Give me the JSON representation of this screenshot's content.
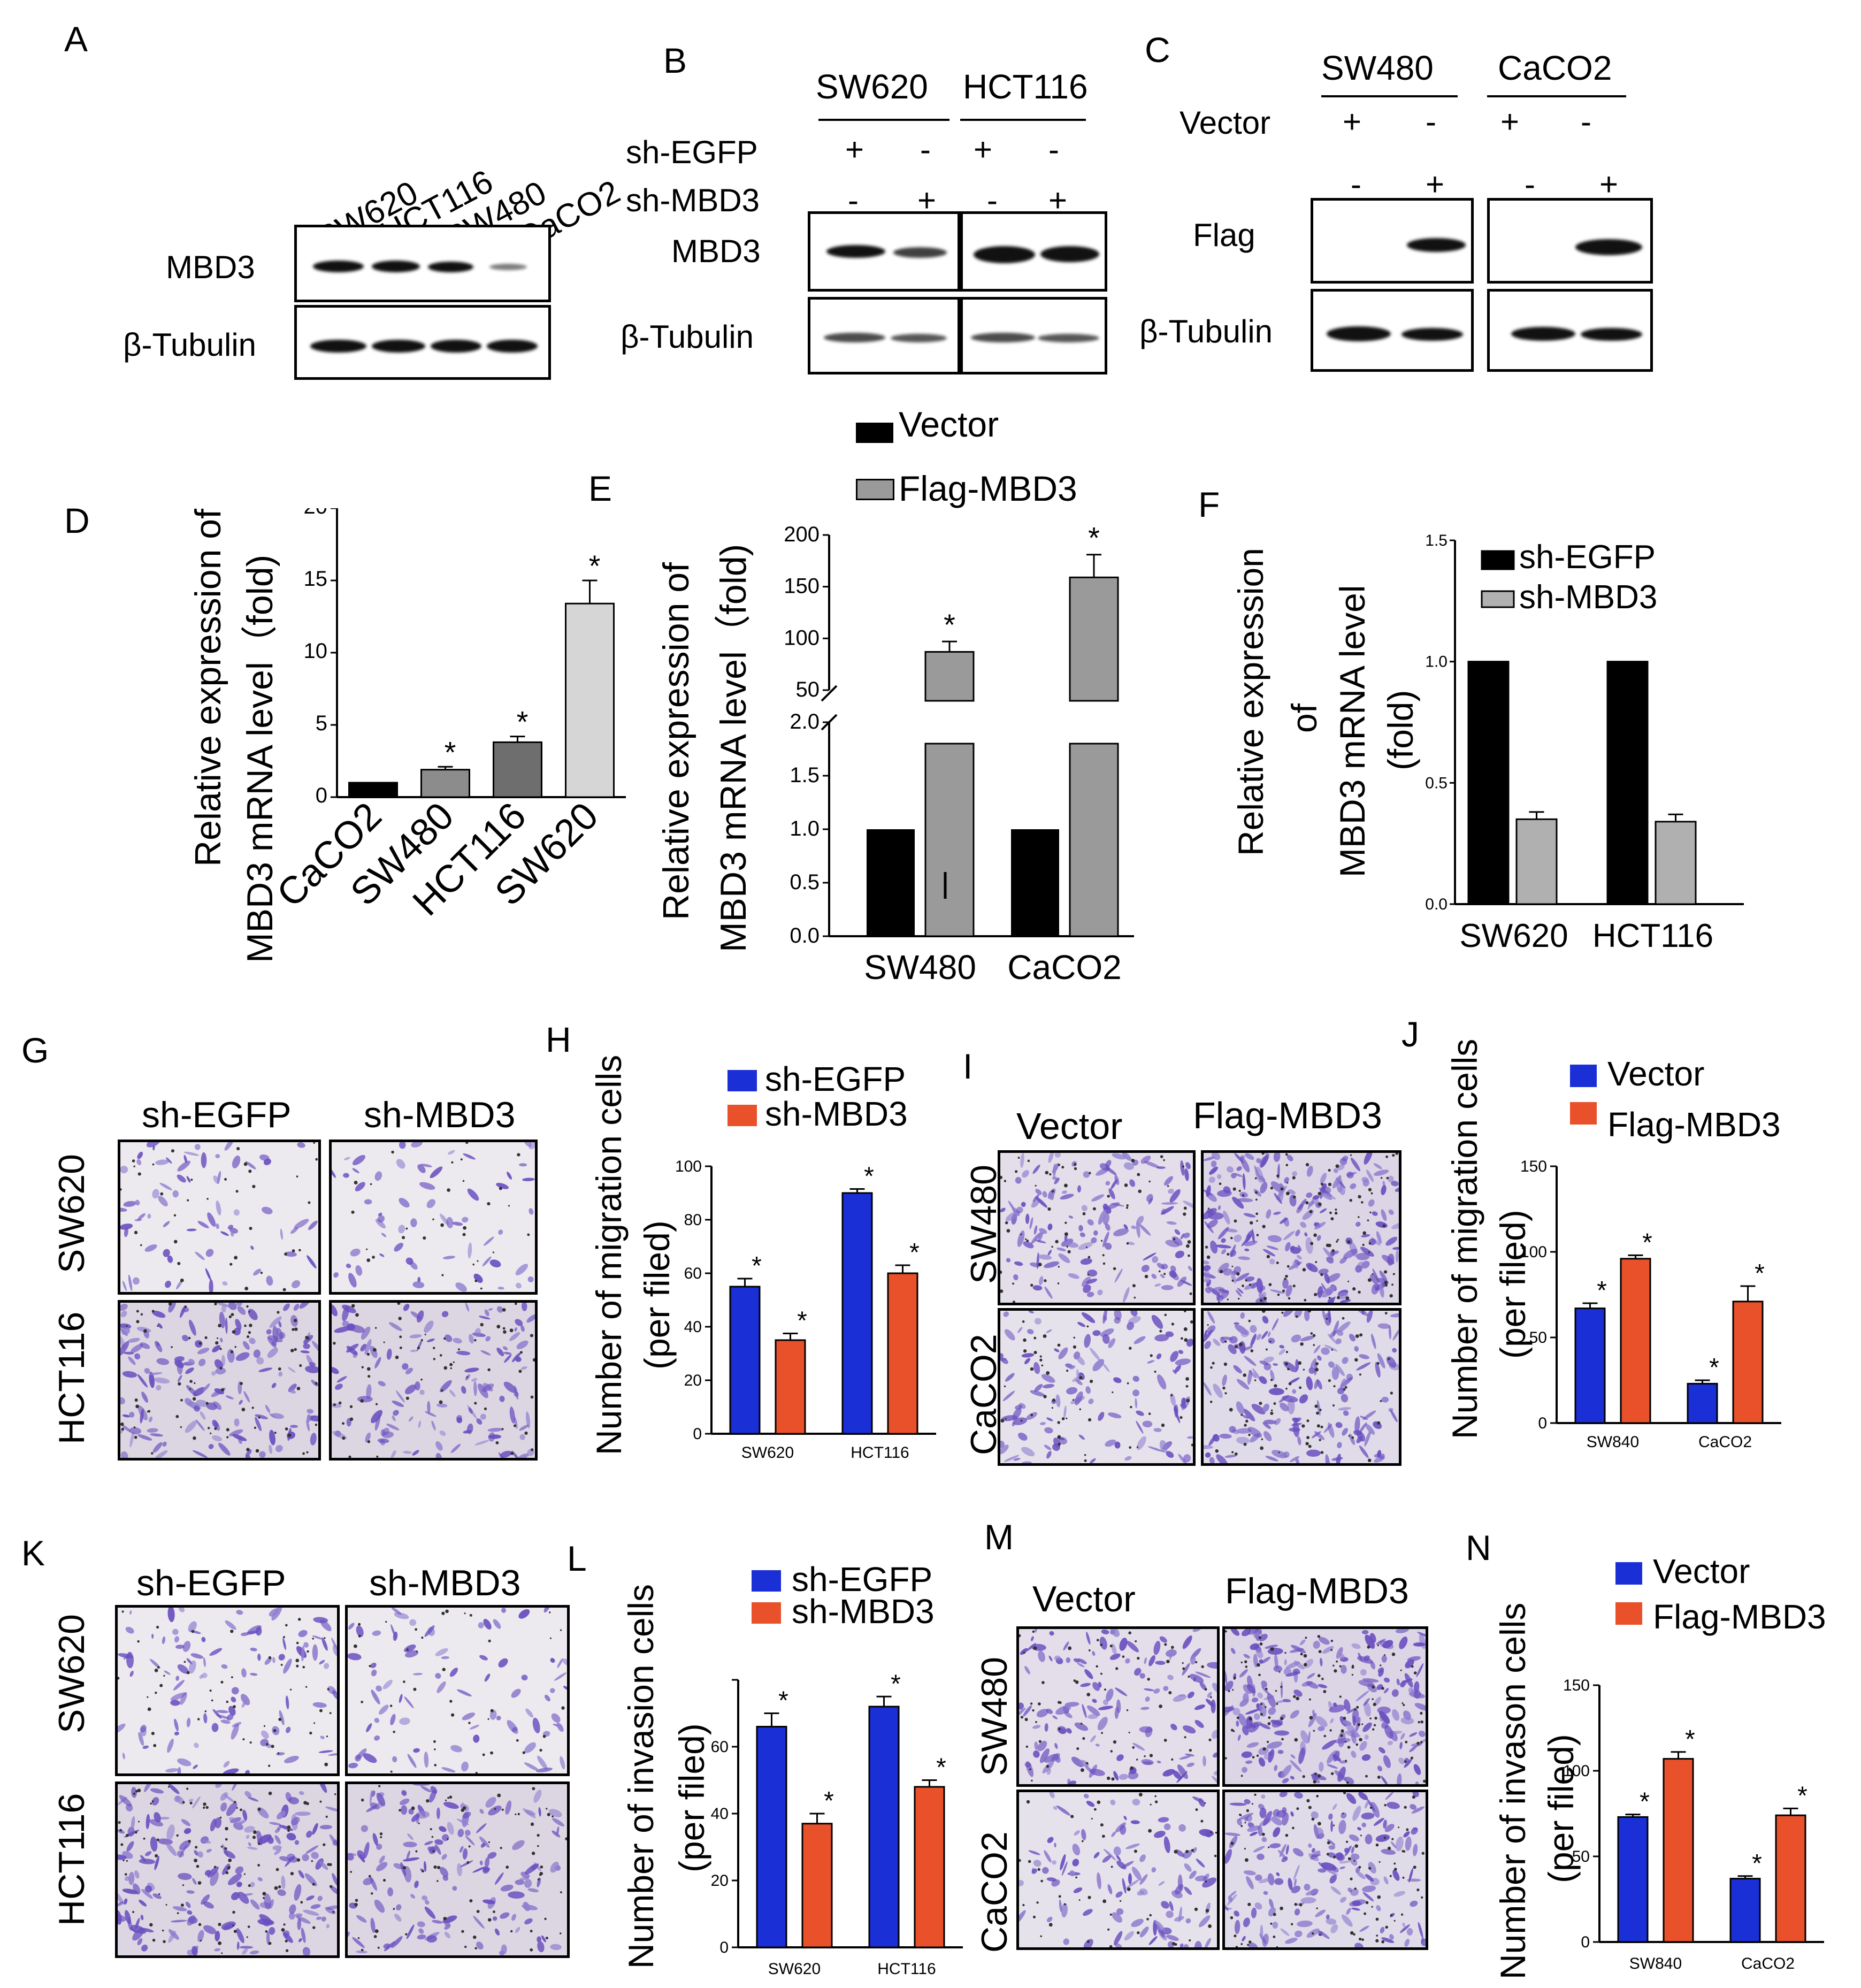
{
  "panels": {
    "A": {
      "label": "A",
      "cells": [
        "SW620",
        "HCT116",
        "SW480",
        "CaCO2"
      ],
      "rows": [
        "MBD3",
        "β-Tubulin"
      ]
    },
    "B": {
      "label": "B",
      "groups": [
        "SW620",
        "HCT116"
      ],
      "rows": [
        "sh-EGFP",
        "sh-MBD3"
      ],
      "egfp_signs": [
        "+",
        "-",
        "+",
        "-"
      ],
      "mbd3_signs": [
        "-",
        "+",
        "-",
        "+"
      ],
      "blots": [
        "MBD3",
        "β-Tubulin"
      ]
    },
    "C": {
      "label": "C",
      "groups": [
        "SW480",
        "CaCO2"
      ],
      "row": "Vector",
      "vector_signs": [
        "+",
        "-",
        "+",
        "-"
      ],
      "flag_signs": [
        "-",
        "+",
        "-",
        "+"
      ],
      "blots": [
        "Flag",
        "β-Tubulin"
      ]
    },
    "D": {
      "label": "D",
      "ylabel_line1": "Relative  expression of",
      "ylabel_line2": "MBD3 mRNA level（fold)"
    },
    "E": {
      "label": "E",
      "ylabel_line1": "Relative  expression of",
      "ylabel_line2": "MBD3 mRNA level（fold)",
      "legend": [
        "Vector",
        "Flag-MBD3"
      ]
    },
    "F": {
      "label": "F",
      "ylabel_line1": "Relative  expression",
      "ylabel_line2": "of",
      "ylabel_line3": "MBD3 mRNA level",
      "ylabel_line4": "(fold)",
      "legend": [
        "sh-EGFP",
        "sh-MBD3"
      ]
    },
    "G": {
      "label": "G",
      "cols": [
        "sh-EGFP",
        "sh-MBD3"
      ],
      "rows": [
        "SW620",
        "HCT116"
      ]
    },
    "H": {
      "label": "H",
      "ylabel_line1": "Number of migration  cells",
      "ylabel_line2": "(per filed)",
      "legend": [
        "sh-EGFP",
        "sh-MBD3"
      ]
    },
    "I": {
      "label": "I",
      "cols": [
        "Vector",
        "Flag-MBD3"
      ],
      "rows": [
        "SW480",
        "CaCO2"
      ]
    },
    "J": {
      "label": "J",
      "ylabel_line1": "Number of migration  cells",
      "ylabel_line2": "(per filed)",
      "legend": [
        "Vector",
        "Flag-MBD3"
      ]
    },
    "K": {
      "label": "K",
      "cols": [
        "sh-EGFP",
        "sh-MBD3"
      ],
      "rows": [
        "SW620",
        "HCT116"
      ]
    },
    "L": {
      "label": "L",
      "ylabel_line1": "Number of invasion cells",
      "ylabel_line2": "(per filed)",
      "legend": [
        "sh-EGFP",
        "sh-MBD3"
      ]
    },
    "M": {
      "label": "M",
      "cols": [
        "Vector",
        "Flag-MBD3"
      ],
      "rows": [
        "SW480",
        "CaCO2"
      ]
    },
    "N": {
      "label": "N",
      "ylabel_line1": "Number of invason cells",
      "ylabel_line2": "(per filed)",
      "legend": [
        "Vector",
        "Flag-MBD3"
      ]
    }
  },
  "colors": {
    "blue": "#1a2fd6",
    "red": "#e8512a",
    "black": "#000000",
    "grey": "#9a9a9a",
    "crystal_violet": "#6a4fc0"
  },
  "chart_data": [
    {
      "panel": "D",
      "type": "bar",
      "categories": [
        "CaCO2",
        "SW480",
        "HCT116",
        "SW620"
      ],
      "series": [
        {
          "values": [
            1.0,
            1.9,
            3.8,
            13.4
          ],
          "errors": [
            0,
            0.2,
            0.4,
            1.6
          ],
          "colors": [
            "#000000",
            "#8c8c8c",
            "#6e6e6e",
            "#d6d6d6"
          ],
          "sig": [
            "",
            "*",
            "*",
            "*"
          ]
        }
      ],
      "ylim": [
        0,
        20
      ],
      "yticks": [
        0,
        5,
        10,
        15,
        20
      ]
    },
    {
      "panel": "E",
      "type": "bar",
      "categories": [
        "SW480",
        "CaCO2"
      ],
      "series": [
        {
          "name": "Vector",
          "values": [
            1.0,
            1.0
          ],
          "errors": [
            0,
            0
          ],
          "color": "#000000",
          "sig": [
            "",
            ""
          ]
        },
        {
          "name": "Flag-MBD3",
          "values": [
            87,
            159
          ],
          "errors": [
            10,
            22
          ],
          "color": "#9a9a9a",
          "sig": [
            "*",
            "*"
          ]
        }
      ],
      "broken_axis": true,
      "lower_ticks": [
        "0.0",
        "0.5",
        "1.0",
        "1.5",
        "2.0"
      ],
      "upper_ticks": [
        "50",
        "100",
        "150",
        "200"
      ]
    },
    {
      "panel": "F",
      "type": "bar",
      "categories": [
        "SW620",
        "HCT116"
      ],
      "series": [
        {
          "name": "sh-EGFP",
          "values": [
            1.0,
            1.0
          ],
          "errors": [
            0,
            0
          ],
          "color": "#000000"
        },
        {
          "name": "sh-MBD3",
          "values": [
            0.35,
            0.34
          ],
          "errors": [
            0.03,
            0.03
          ],
          "color": "#b0b0b0"
        }
      ],
      "ylim": [
        0,
        1.5
      ],
      "yticks": [
        "0.0",
        "0.5",
        "1.0",
        "1.5"
      ]
    },
    {
      "panel": "H",
      "type": "bar",
      "categories": [
        "SW620",
        "HCT116"
      ],
      "series": [
        {
          "name": "sh-EGFP",
          "values": [
            55,
            90
          ],
          "errors": [
            3,
            1.5
          ],
          "color": "#1a2fd6",
          "sig": [
            "*",
            "*"
          ]
        },
        {
          "name": "sh-MBD3",
          "values": [
            35,
            60
          ],
          "errors": [
            2.5,
            3
          ],
          "color": "#e8512a",
          "sig": [
            "*",
            "*"
          ]
        }
      ],
      "ylim": [
        0,
        100
      ],
      "yticks": [
        "0",
        "20",
        "40",
        "60",
        "80",
        "100"
      ]
    },
    {
      "panel": "J",
      "type": "bar",
      "categories": [
        "SW840",
        "CaCO2"
      ],
      "series": [
        {
          "name": "Vector",
          "values": [
            67,
            23
          ],
          "errors": [
            3,
            2
          ],
          "color": "#1a2fd6",
          "sig": [
            "*",
            "*"
          ]
        },
        {
          "name": "Flag-MBD3",
          "values": [
            96,
            71
          ],
          "errors": [
            2,
            9
          ],
          "color": "#e8512a",
          "sig": [
            "*",
            "*"
          ]
        }
      ],
      "ylim": [
        0,
        150
      ],
      "yticks": [
        "0",
        "50",
        "100",
        "150"
      ]
    },
    {
      "panel": "L",
      "type": "bar",
      "categories": [
        "SW620",
        "HCT116"
      ],
      "series": [
        {
          "name": "sh-EGFP",
          "values": [
            66,
            72
          ],
          "errors": [
            4,
            3
          ],
          "color": "#1a2fd6",
          "sig": [
            "*",
            "*"
          ]
        },
        {
          "name": "sh-MBD3",
          "values": [
            37,
            48
          ],
          "errors": [
            3,
            2
          ],
          "color": "#e8512a",
          "sig": [
            "*",
            "*"
          ]
        }
      ],
      "ylim": [
        0,
        80
      ],
      "yticks": [
        "0",
        "20",
        "40",
        "60",
        "80"
      ],
      "ytick_labels_visible": [
        "0",
        "20",
        "40",
        "60"
      ]
    },
    {
      "panel": "N",
      "type": "bar",
      "categories": [
        "SW840",
        "CaCO2"
      ],
      "series": [
        {
          "name": "Vector",
          "values": [
            73,
            37
          ],
          "errors": [
            1.5,
            1.5
          ],
          "color": "#1a2fd6",
          "sig": [
            "*",
            "*"
          ]
        },
        {
          "name": "Flag-MBD3",
          "values": [
            107,
            74
          ],
          "errors": [
            4,
            4
          ],
          "color": "#e8512a",
          "sig": [
            "*",
            "*"
          ]
        }
      ],
      "ylim": [
        0,
        150
      ],
      "yticks": [
        "0",
        "50",
        "100",
        "150"
      ]
    }
  ]
}
